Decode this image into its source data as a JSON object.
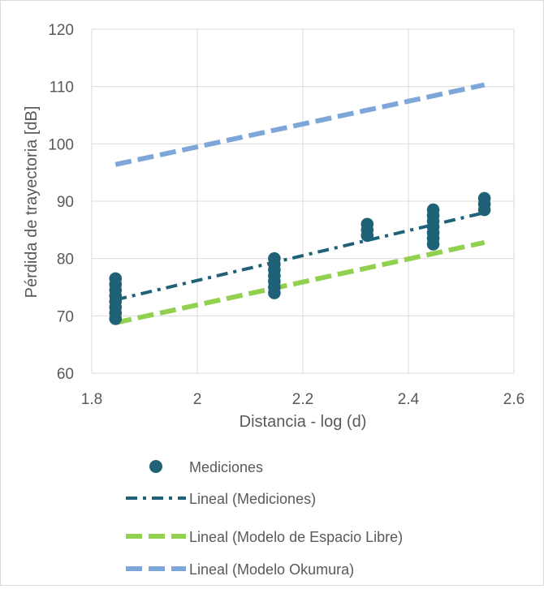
{
  "chart_data": {
    "type": "scatter",
    "title": "",
    "xlabel": "Distancia - log (d)",
    "ylabel": "Pérdida de trayectoria [dB]",
    "xlim": [
      1.8,
      2.6
    ],
    "ylim": [
      60,
      120
    ],
    "x_ticks": [
      1.8,
      2.0,
      2.2,
      2.4,
      2.6
    ],
    "x_tick_labels": [
      "1.8",
      "2",
      "2.2",
      "2.4",
      "2.6"
    ],
    "y_ticks": [
      60,
      70,
      80,
      90,
      100,
      110,
      120
    ],
    "y_tick_labels": [
      "60",
      "70",
      "80",
      "90",
      "100",
      "110",
      "120"
    ],
    "grid": true,
    "legend_position": "bottom",
    "series": [
      {
        "name": "Mediciones",
        "kind": "scatter",
        "color": "#1f6278",
        "points": [
          [
            1.845,
            69.5
          ],
          [
            1.845,
            70.5
          ],
          [
            1.845,
            71.5
          ],
          [
            1.845,
            72.5
          ],
          [
            1.845,
            73.5
          ],
          [
            1.845,
            74.5
          ],
          [
            1.845,
            75.5
          ],
          [
            1.845,
            76.5
          ],
          [
            2.146,
            74.0
          ],
          [
            2.146,
            75.0
          ],
          [
            2.146,
            76.0
          ],
          [
            2.146,
            77.0
          ],
          [
            2.146,
            78.0
          ],
          [
            2.146,
            79.0
          ],
          [
            2.146,
            80.0
          ],
          [
            2.322,
            84.0
          ],
          [
            2.322,
            85.0
          ],
          [
            2.322,
            86.0
          ],
          [
            2.447,
            82.5
          ],
          [
            2.447,
            83.5
          ],
          [
            2.447,
            84.5
          ],
          [
            2.447,
            85.5
          ],
          [
            2.447,
            86.5
          ],
          [
            2.447,
            87.5
          ],
          [
            2.447,
            88.5
          ],
          [
            2.544,
            88.5
          ],
          [
            2.544,
            89.5
          ],
          [
            2.544,
            90.5
          ]
        ]
      },
      {
        "name": "Lineal (Mediciones)",
        "kind": "line",
        "dash": "dash-dot",
        "color": "#1f6278",
        "x": [
          1.845,
          2.544
        ],
        "y": [
          72.8,
          88.0
        ]
      },
      {
        "name": "Lineal (Modelo de Espacio Libre)",
        "kind": "line",
        "dash": "dashed",
        "color": "#92d050",
        "x": [
          1.845,
          2.544
        ],
        "y": [
          68.8,
          82.8
        ]
      },
      {
        "name": "Lineal (Modelo Okumura)",
        "kind": "line",
        "dash": "dashed",
        "color": "#7da7d9",
        "x": [
          1.845,
          2.544
        ],
        "y": [
          96.4,
          110.3
        ]
      }
    ],
    "legend": [
      "Mediciones",
      "Lineal (Mediciones)",
      "Lineal (Modelo de Espacio Libre)",
      "Lineal (Modelo Okumura)"
    ]
  }
}
